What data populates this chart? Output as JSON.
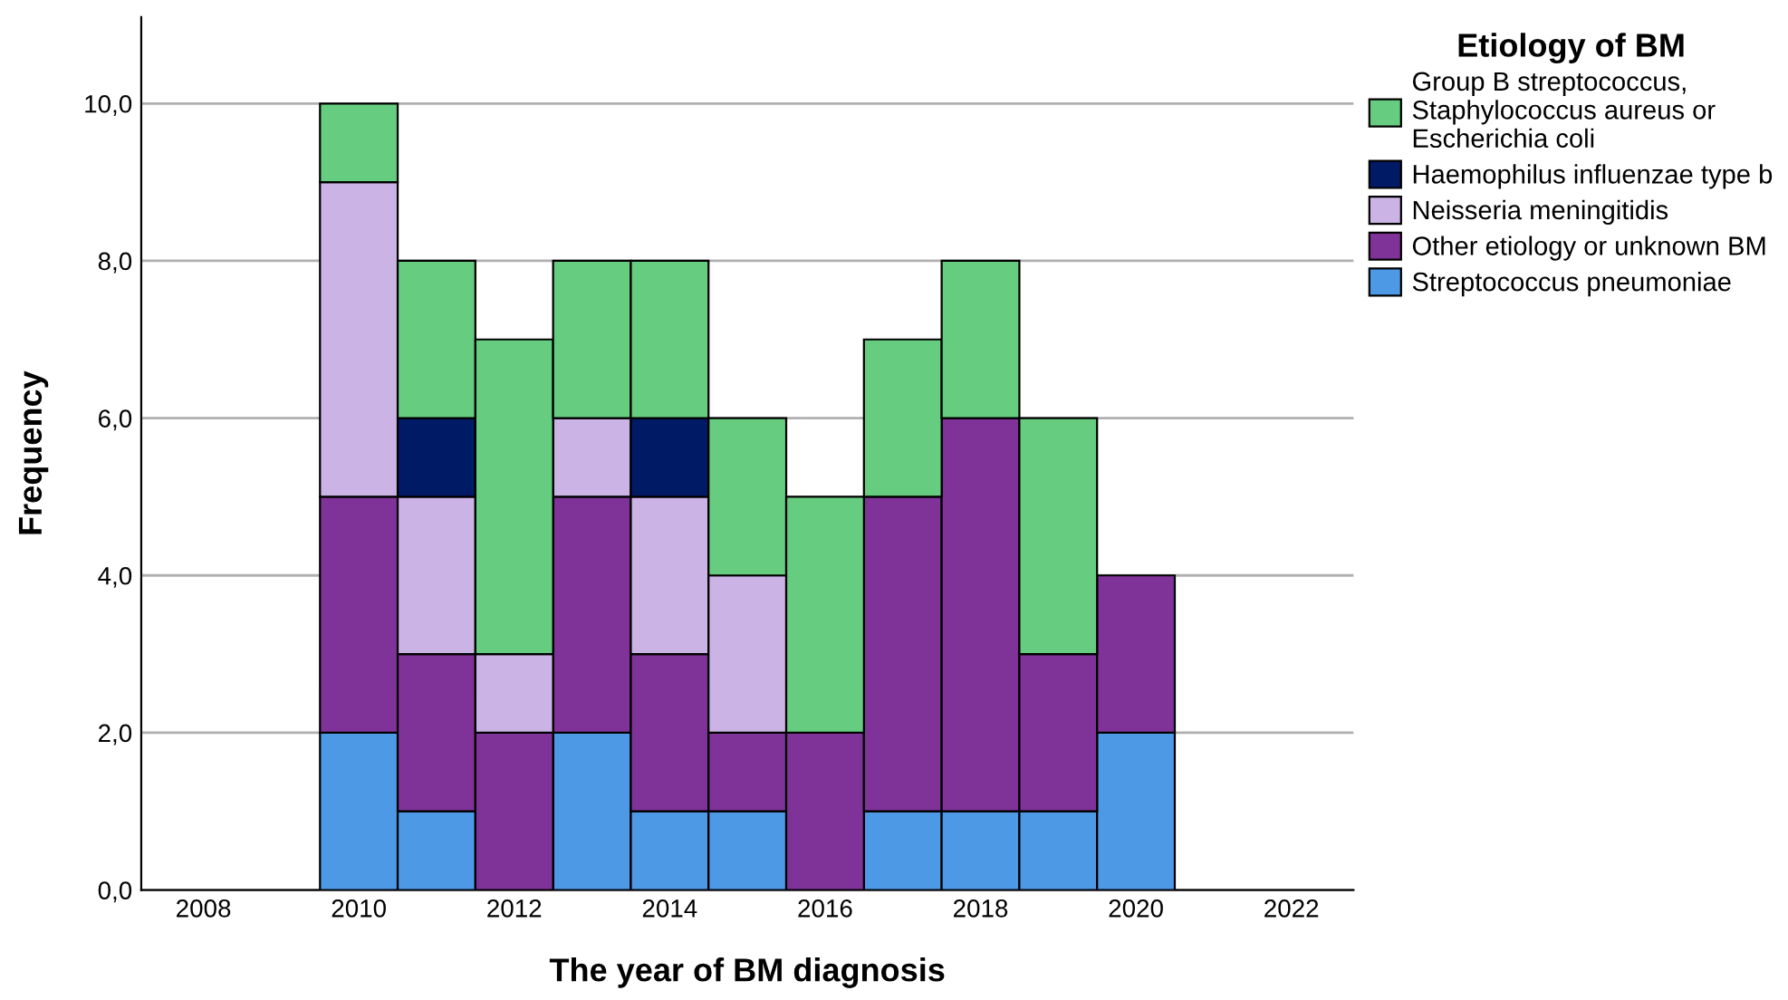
{
  "chart_data": {
    "type": "bar",
    "stacked": true,
    "xlabel": "The year of BM diagnosis",
    "ylabel": "Frequency",
    "legend_title": "Etiology of BM",
    "x": [
      2010,
      2011,
      2012,
      2013,
      2014,
      2015,
      2016,
      2017,
      2018,
      2019,
      2020
    ],
    "series": [
      {
        "name": "Streptococcus pneumoniae",
        "color": "#4d99e6",
        "values": [
          2,
          1,
          0,
          2,
          1,
          1,
          0,
          1,
          1,
          1,
          2
        ]
      },
      {
        "name": "Other etiology or unknown BM",
        "color": "#7f3399",
        "values": [
          3,
          2,
          2,
          3,
          2,
          1,
          2,
          4,
          5,
          2,
          2
        ]
      },
      {
        "name": "Neisseria meningitidis",
        "color": "#cbb3e6",
        "values": [
          4,
          2,
          1,
          1,
          2,
          2,
          0,
          0,
          0,
          0,
          0
        ]
      },
      {
        "name": "Haemophilus influenzae type b",
        "color": "#001a66",
        "values": [
          0,
          1,
          0,
          0,
          1,
          0,
          0,
          0,
          0,
          0,
          0
        ]
      },
      {
        "name": "Group B streptococcus,\nStaphylococcus aureus or\nEscherichia coli",
        "color": "#66cc80",
        "values": [
          1,
          2,
          4,
          2,
          2,
          2,
          3,
          2,
          2,
          3,
          0
        ]
      }
    ],
    "xlim": [
      2007.2,
      2022.8
    ],
    "xticks": [
      2008,
      2010,
      2012,
      2014,
      2016,
      2018,
      2020,
      2022
    ],
    "ylim": [
      0,
      11.1
    ],
    "yticks": [
      {
        "value": 0,
        "label": "0,0"
      },
      {
        "value": 2,
        "label": "2,0"
      },
      {
        "value": 4,
        "label": "4,0"
      },
      {
        "value": 6,
        "label": "6,0"
      },
      {
        "value": 8,
        "label": "8,0"
      },
      {
        "value": 10,
        "label": "10,0"
      }
    ],
    "grid": "y",
    "legend": "right"
  }
}
